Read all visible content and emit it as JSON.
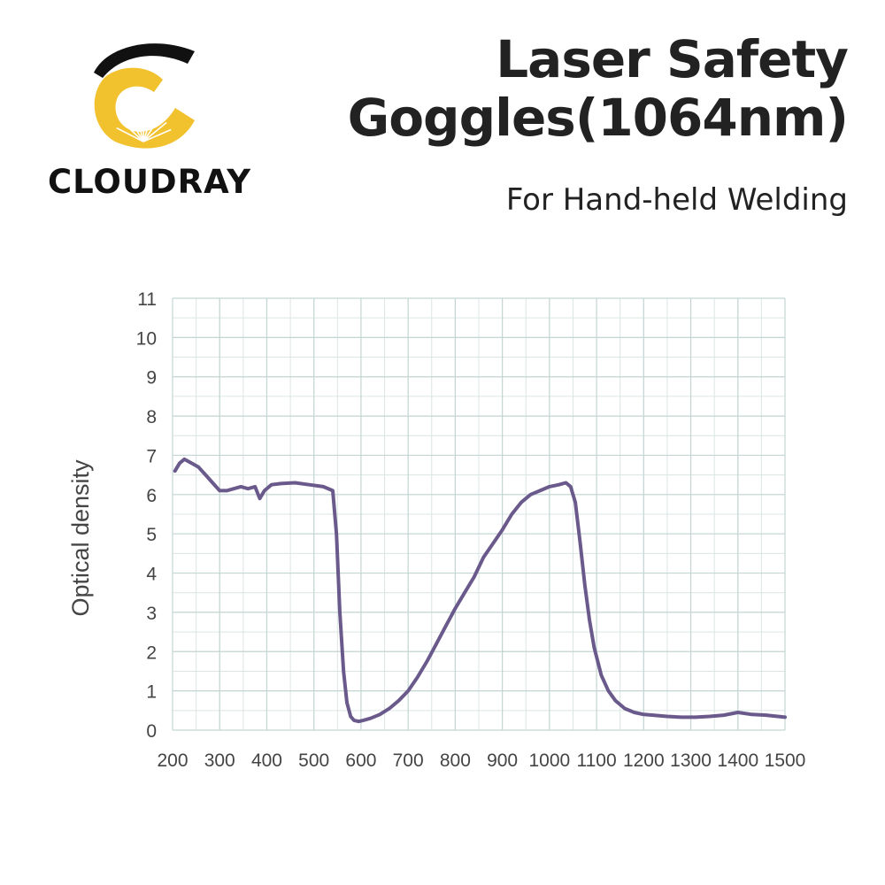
{
  "brand": {
    "name": "CLOUDRAY",
    "colors": {
      "arc": "#111111",
      "c": "#f2c12e"
    }
  },
  "header": {
    "title_line1": "Laser Safety",
    "title_line2": "Goggles(1064nm)",
    "subtitle": "For Hand-held Welding"
  },
  "chart_data": {
    "type": "line",
    "title": "",
    "xlabel": "",
    "ylabel": "Optical density",
    "xlim": [
      200,
      1500
    ],
    "ylim": [
      0,
      11
    ],
    "xticks": [
      200,
      300,
      400,
      500,
      600,
      700,
      800,
      900,
      1000,
      1100,
      1200,
      1300,
      1400,
      1500
    ],
    "yticks": [
      0,
      1,
      2,
      3,
      4,
      5,
      6,
      7,
      8,
      9,
      10,
      11
    ],
    "grid": true,
    "line_color": "#6a5a8c",
    "series": [
      {
        "x": [
          205,
          215,
          225,
          240,
          255,
          270,
          285,
          300,
          315,
          330,
          345,
          360,
          375,
          385,
          395,
          410,
          430,
          460,
          490,
          520,
          540,
          548,
          555,
          563,
          570,
          578,
          585,
          595,
          605,
          620,
          640,
          660,
          680,
          700,
          720,
          740,
          760,
          780,
          800,
          820,
          840,
          860,
          880,
          900,
          920,
          940,
          960,
          980,
          1000,
          1020,
          1035,
          1045,
          1055,
          1065,
          1075,
          1085,
          1095,
          1110,
          1125,
          1140,
          1160,
          1180,
          1200,
          1220,
          1250,
          1280,
          1310,
          1340,
          1370,
          1400,
          1430,
          1460,
          1500
        ],
        "y": [
          6.6,
          6.8,
          6.9,
          6.8,
          6.7,
          6.5,
          6.3,
          6.1,
          6.1,
          6.15,
          6.2,
          6.15,
          6.2,
          5.9,
          6.1,
          6.25,
          6.28,
          6.3,
          6.25,
          6.2,
          6.1,
          5.0,
          3.0,
          1.5,
          0.7,
          0.35,
          0.25,
          0.22,
          0.25,
          0.3,
          0.4,
          0.55,
          0.75,
          1.0,
          1.35,
          1.75,
          2.2,
          2.65,
          3.1,
          3.5,
          3.9,
          4.4,
          4.75,
          5.1,
          5.5,
          5.8,
          6.0,
          6.1,
          6.2,
          6.25,
          6.3,
          6.2,
          5.8,
          4.8,
          3.7,
          2.8,
          2.1,
          1.4,
          1.0,
          0.75,
          0.55,
          0.45,
          0.4,
          0.38,
          0.35,
          0.33,
          0.33,
          0.35,
          0.38,
          0.45,
          0.4,
          0.38,
          0.33
        ]
      }
    ]
  }
}
